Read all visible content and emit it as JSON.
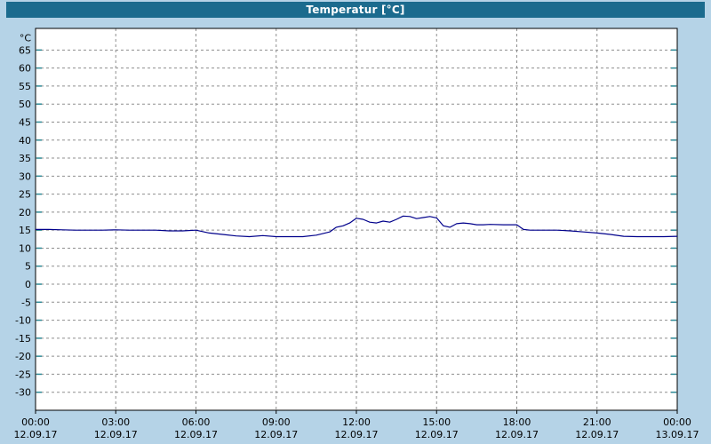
{
  "title_bar": {
    "title": "Temperatur [°C]"
  },
  "colors": {
    "background": "#b5d3e7",
    "title_bar_bg": "#1b6b8e",
    "title_text": "#ffffff",
    "plot_bg": "#ffffff",
    "plot_border": "#000000",
    "grid": "#8f8f8f",
    "y_tick_mark": "#2d8a96",
    "x_tick_mark": "#000000",
    "axis_text": "#000000",
    "line": "#00008b"
  },
  "chart_data": {
    "type": "line",
    "title": "Temperatur [°C]",
    "ylabel": "°C",
    "xlabel": "",
    "grid": true,
    "legend": "none",
    "ylim": [
      -35,
      71
    ],
    "xlim_hours": [
      0,
      24
    ],
    "y_ticks": [
      65,
      60,
      55,
      50,
      45,
      40,
      35,
      30,
      25,
      20,
      15,
      10,
      5,
      0,
      -5,
      -10,
      -15,
      -20,
      -25,
      -30
    ],
    "x_ticks": [
      {
        "hour": 0,
        "time": "00:00",
        "date": "12.09.17"
      },
      {
        "hour": 3,
        "time": "03:00",
        "date": "12.09.17"
      },
      {
        "hour": 6,
        "time": "06:00",
        "date": "12.09.17"
      },
      {
        "hour": 9,
        "time": "09:00",
        "date": "12.09.17"
      },
      {
        "hour": 12,
        "time": "12:00",
        "date": "12.09.17"
      },
      {
        "hour": 15,
        "time": "15:00",
        "date": "12.09.17"
      },
      {
        "hour": 18,
        "time": "18:00",
        "date": "12.09.17"
      },
      {
        "hour": 21,
        "time": "21:00",
        "date": "12.09.17"
      },
      {
        "hour": 24,
        "time": "00:00",
        "date": "13.09.17"
      }
    ],
    "series": [
      {
        "name": "Temperatur",
        "unit": "°C",
        "color": "#00008b",
        "points": [
          [
            0,
            15.2
          ],
          [
            0.5,
            15.2
          ],
          [
            1,
            15.1
          ],
          [
            1.5,
            15.0
          ],
          [
            2,
            15.0
          ],
          [
            2.5,
            15.0
          ],
          [
            3,
            15.1
          ],
          [
            3.5,
            15.0
          ],
          [
            4,
            15.0
          ],
          [
            4.5,
            15.0
          ],
          [
            5,
            14.8
          ],
          [
            5.5,
            14.8
          ],
          [
            6,
            15.0
          ],
          [
            6.5,
            14.2
          ],
          [
            7,
            13.8
          ],
          [
            7.5,
            13.4
          ],
          [
            8,
            13.2
          ],
          [
            8.5,
            13.5
          ],
          [
            9,
            13.2
          ],
          [
            9.5,
            13.2
          ],
          [
            10,
            13.2
          ],
          [
            10.5,
            13.6
          ],
          [
            11,
            14.5
          ],
          [
            11.25,
            15.8
          ],
          [
            11.5,
            16.2
          ],
          [
            11.75,
            17.0
          ],
          [
            12,
            18.3
          ],
          [
            12.25,
            18.0
          ],
          [
            12.5,
            17.2
          ],
          [
            12.75,
            17.0
          ],
          [
            13,
            17.5
          ],
          [
            13.25,
            17.2
          ],
          [
            13.5,
            18.0
          ],
          [
            13.75,
            18.9
          ],
          [
            14,
            18.8
          ],
          [
            14.25,
            18.2
          ],
          [
            14.5,
            18.5
          ],
          [
            14.75,
            18.8
          ],
          [
            15,
            18.4
          ],
          [
            15.25,
            16.2
          ],
          [
            15.5,
            15.8
          ],
          [
            15.75,
            16.8
          ],
          [
            16,
            17.0
          ],
          [
            16.25,
            16.8
          ],
          [
            16.5,
            16.5
          ],
          [
            16.75,
            16.5
          ],
          [
            17,
            16.6
          ],
          [
            17.5,
            16.5
          ],
          [
            18,
            16.5
          ],
          [
            18.25,
            15.2
          ],
          [
            18.5,
            15.0
          ],
          [
            19,
            15.0
          ],
          [
            19.5,
            15.0
          ],
          [
            20,
            14.8
          ],
          [
            20.5,
            14.5
          ],
          [
            21,
            14.2
          ],
          [
            21.5,
            13.8
          ],
          [
            22,
            13.3
          ],
          [
            22.5,
            13.2
          ],
          [
            23,
            13.2
          ],
          [
            23.5,
            13.2
          ],
          [
            24,
            13.3
          ]
        ]
      }
    ]
  }
}
